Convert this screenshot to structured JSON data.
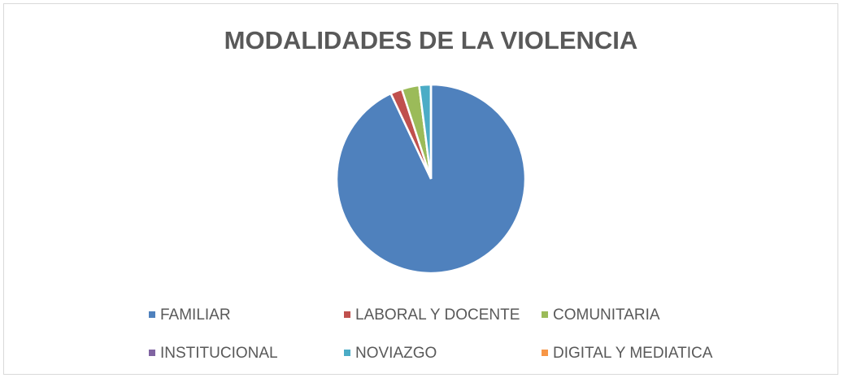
{
  "chart_data": {
    "type": "pie",
    "title": "MODALIDADES DE LA VIOLENCIA",
    "categories": [
      "FAMILIAR",
      "LABORAL Y DOCENTE",
      "COMUNITARIA",
      "INSTITUCIONAL",
      "NOVIAZGO",
      "DIGITAL Y MEDIATICA"
    ],
    "values": [
      93,
      2,
      3,
      0,
      2,
      0
    ],
    "colors": [
      "#4f81bd",
      "#c0504d",
      "#9bbb59",
      "#8064a2",
      "#4bacc6",
      "#f79646"
    ],
    "legend": "bottom"
  }
}
